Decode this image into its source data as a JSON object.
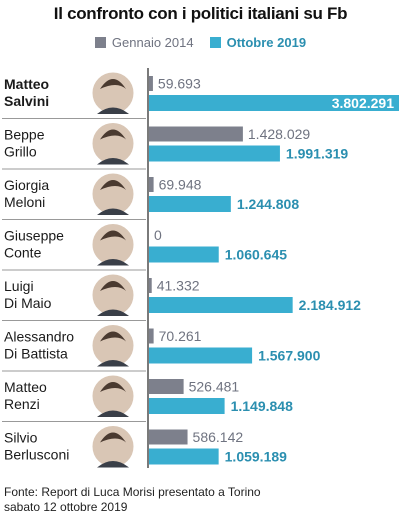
{
  "title": "Il confronto con i politici italiani su Fb",
  "legend": [
    {
      "label": "Gennaio 2014",
      "color": "#7d808c"
    },
    {
      "label": "Ottobre 2019",
      "color": "#39aed0"
    }
  ],
  "chart_data": {
    "type": "bar",
    "orientation": "horizontal",
    "categories": [
      [
        "Matteo",
        "Salvini"
      ],
      [
        "Beppe",
        "Grillo"
      ],
      [
        "Giorgia",
        "Meloni"
      ],
      [
        "Giuseppe",
        "Conte"
      ],
      [
        "Luigi",
        "Di Maio"
      ],
      [
        "Alessandro",
        "Di Battista"
      ],
      [
        "Matteo",
        "Renzi"
      ],
      [
        "Silvio",
        "Berlusconi"
      ]
    ],
    "highlight_first": true,
    "series": [
      {
        "name": "Gennaio 2014",
        "values": [
          59693,
          1428029,
          69948,
          0,
          41332,
          70261,
          526481,
          586142
        ],
        "labels": [
          "59.693",
          "1.428.029",
          "69.948",
          "0",
          "41.332",
          "70.261",
          "526.481",
          "586.142"
        ],
        "color": "#7d808c"
      },
      {
        "name": "Ottobre 2019",
        "values": [
          3802291,
          1991319,
          1244808,
          1060645,
          2184912,
          1567900,
          1149848,
          1059189
        ],
        "labels": [
          "3.802.291",
          "1.991.319",
          "1.244.808",
          "1.060.645",
          "2.184.912",
          "1.567.900",
          "1.149.848",
          "1.059.189"
        ],
        "color": "#39aed0"
      }
    ],
    "xlim": [
      0,
      3802291
    ]
  },
  "source": [
    "Fonte: Report di Luca Morisi presentato a Torino",
    "sabato 12 ottobre 2019"
  ]
}
